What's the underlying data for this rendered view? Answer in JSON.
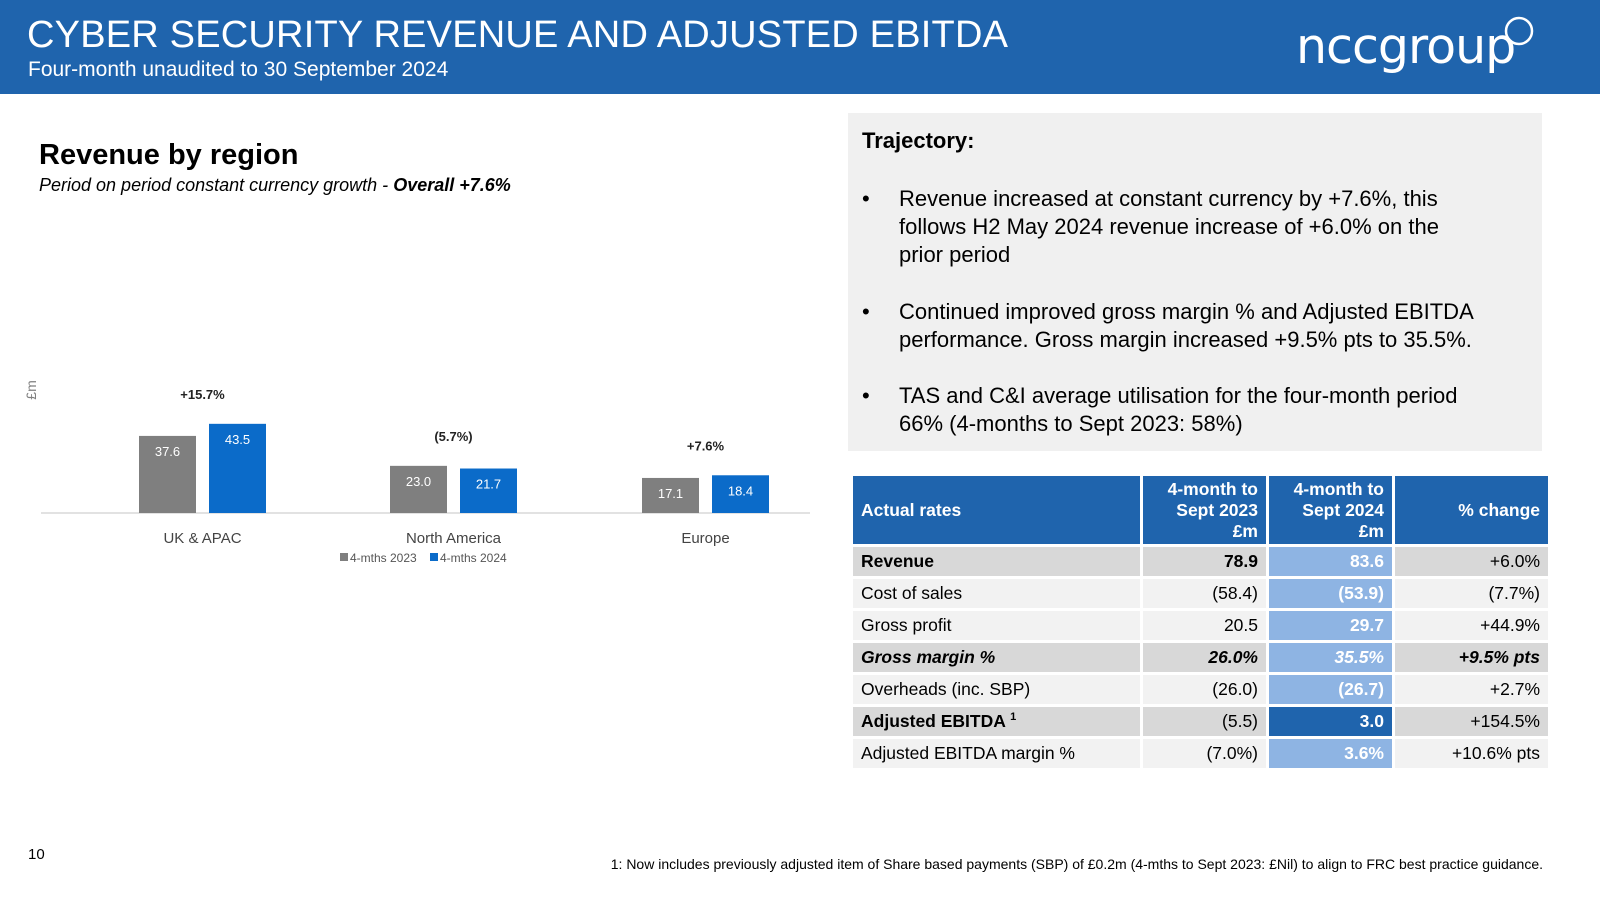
{
  "header": {
    "title": "CYBER SECURITY REVENUE AND ADJUSTED EBITDA",
    "subtitle": "Four-month unaudited to 30 September 2024",
    "logo": "nccgroup"
  },
  "revenue": {
    "title": "Revenue by region",
    "subtitle_italic": "Period on period constant currency growth - ",
    "subtitle_bold": "Overall +7.6%"
  },
  "chart_data": {
    "type": "bar",
    "ylabel": "£m",
    "categories": [
      "UK & APAC",
      "North America",
      "Europe"
    ],
    "series": [
      {
        "name": "4-mths 2023",
        "values": [
          37.6,
          23.0,
          17.1
        ],
        "labels": [
          "37.6",
          "23.0",
          "17.1"
        ],
        "color": "#7f7f7f"
      },
      {
        "name": "4-mths 2024",
        "values": [
          43.5,
          21.7,
          18.4
        ],
        "labels": [
          "43.5",
          "21.7",
          "18.4"
        ],
        "color": "#0b6bc9"
      }
    ],
    "growth_labels": [
      "+15.7%",
      "(5.7%)",
      "+7.6%"
    ],
    "ylim": [
      0,
      45
    ]
  },
  "trajectory": {
    "title": "Trajectory:",
    "bullet_symbol": "•",
    "bullets": [
      "Revenue increased at constant currency by +7.6%, this follows H2 May 2024 revenue increase of +6.0% on the prior period",
      "Continued improved gross margin % and Adjusted EBITDA performance. Gross margin increased +9.5% pts to 35.5%.",
      "TAS and C&I average utilisation for the four-month period 66% (4-months to Sept 2023: 58%)"
    ]
  },
  "table": {
    "headers": [
      "Actual rates",
      "4-month to Sept 2023 £m",
      "4-month to Sept 2024 £m",
      "% change"
    ],
    "rows": [
      [
        "Revenue",
        "78.9",
        "83.6",
        "+6.0%"
      ],
      [
        "Cost of sales",
        "(58.4)",
        "(53.9)",
        "(7.7%)"
      ],
      [
        "Gross profit",
        "20.5",
        "29.7",
        "+44.9%"
      ],
      [
        "Gross margin %",
        "26.0%",
        "35.5%",
        "+9.5% pts"
      ],
      [
        "Overheads (inc. SBP)",
        "(26.0)",
        "(26.7)",
        "+2.7%"
      ],
      [
        "Adjusted EBITDA",
        "(5.5)",
        "3.0",
        "+154.5%"
      ],
      [
        "Adjusted EBITDA margin %",
        "(7.0%)",
        "3.6%",
        "+10.6% pts"
      ]
    ],
    "ebitda_superscript": "1"
  },
  "footer": {
    "page_number": "10",
    "footnote": "1: Now includes previously adjusted item of Share based payments (SBP) of £0.2m (4-mths to Sept 2023: £Nil) to align to FRC best practice guidance."
  },
  "colors": {
    "brand_blue": "#1f64ad",
    "bar_2023": "#7f7f7f",
    "bar_2024": "#0b6bc9",
    "light_blue": "#8eb4e3"
  }
}
